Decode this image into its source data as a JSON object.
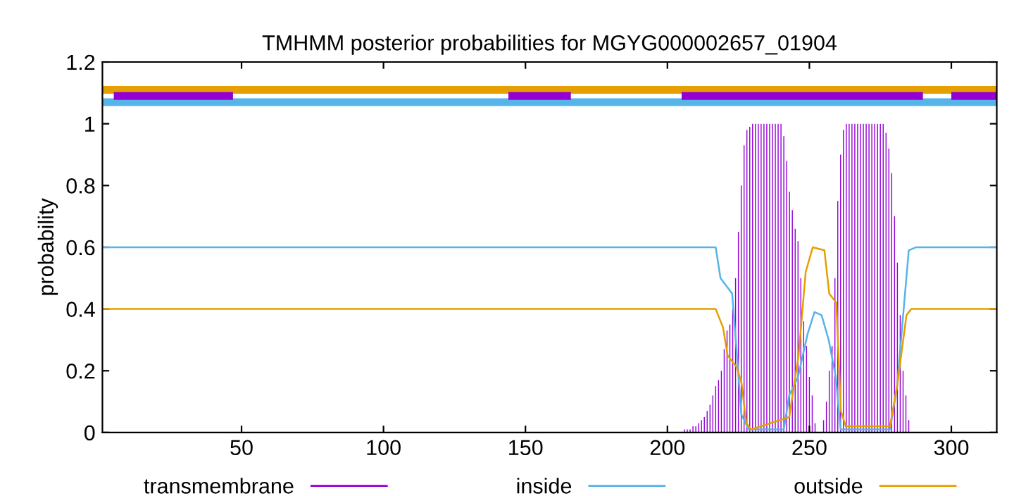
{
  "chart_data": {
    "type": "line",
    "title": "TMHMM posterior probabilities for MGYG000002657_01904",
    "ylabel": "probability",
    "xlim": [
      1,
      316
    ],
    "ylim": [
      0,
      1.2
    ],
    "xticks": [
      50,
      100,
      150,
      200,
      250,
      300
    ],
    "yticks": [
      0,
      0.2,
      0.4,
      0.6,
      0.8,
      1,
      1.2
    ],
    "legend": "bottom",
    "grid": false,
    "series": [
      {
        "name": "transmembrane",
        "type": "bar",
        "color": "#9400d3",
        "x": [
          206,
          207,
          208,
          209,
          210,
          211,
          212,
          213,
          214,
          215,
          216,
          217,
          218,
          219,
          220,
          221,
          222,
          223,
          224,
          225,
          226,
          227,
          228,
          229,
          230,
          231,
          232,
          233,
          234,
          235,
          236,
          237,
          238,
          239,
          240,
          241,
          242,
          243,
          244,
          245,
          246,
          247,
          248,
          249,
          250,
          251,
          252,
          253,
          254,
          255,
          256,
          257,
          258,
          259,
          260,
          261,
          262,
          263,
          264,
          265,
          266,
          267,
          268,
          269,
          270,
          271,
          272,
          273,
          274,
          275,
          276,
          277,
          278,
          279,
          280,
          281,
          282,
          283,
          284,
          285
        ],
        "values": [
          0.01,
          0.01,
          0.01,
          0.02,
          0.02,
          0.03,
          0.04,
          0.05,
          0.07,
          0.09,
          0.12,
          0.15,
          0.17,
          0.2,
          0.27,
          0.33,
          0.35,
          0.4,
          0.5,
          0.65,
          0.8,
          0.93,
          0.98,
          0.99,
          1,
          1,
          1,
          1,
          1,
          1,
          1,
          1,
          1,
          1,
          1,
          0.96,
          0.88,
          0.78,
          0.72,
          0.66,
          0.62,
          0.5,
          0.36,
          0.28,
          0.18,
          0.12,
          0.03,
          null,
          null,
          0.04,
          0.1,
          0.2,
          0.28,
          0.5,
          0.75,
          0.9,
          0.98,
          1,
          1,
          1,
          1,
          1,
          1,
          1,
          1,
          1,
          1,
          1,
          1,
          1,
          1,
          0.97,
          0.92,
          0.84,
          0.7,
          0.55,
          0.38,
          0.2,
          0.12,
          0.04
        ]
      },
      {
        "name": "inside",
        "color": "#56b4e9",
        "x": [
          1,
          217,
          218.7,
          222.8,
          224.5,
          226,
          228.6,
          241,
          242.9,
          246,
          249.4,
          251.8,
          254.3,
          256.8,
          259.3,
          261,
          278.4,
          280.9,
          283.4,
          285,
          287.6,
          316
        ],
        "values": [
          0.6,
          0.6,
          0.5,
          0.45,
          0.25,
          0.06,
          0.01,
          0.01,
          0.12,
          0.18,
          0.32,
          0.39,
          0.38,
          0.3,
          0.18,
          0.01,
          0.01,
          0.15,
          0.42,
          0.59,
          0.6,
          0.6
        ]
      },
      {
        "name": "outside",
        "color": "#e69f00",
        "x": [
          1,
          217,
          219.6,
          221.2,
          224.5,
          226.1,
          227.8,
          229.5,
          242.9,
          246.2,
          248.7,
          251.2,
          255.3,
          257,
          259.5,
          261.1,
          262.8,
          278.4,
          280.9,
          284.2,
          285.9,
          316
        ],
        "values": [
          0.4,
          0.4,
          0.34,
          0.25,
          0.21,
          0.16,
          0.03,
          0.01,
          0.05,
          0.25,
          0.52,
          0.6,
          0.59,
          0.45,
          0.42,
          0.07,
          0.02,
          0.02,
          0.15,
          0.38,
          0.4,
          0.4
        ]
      },
      {
        "color": "#e69f00",
        "x": [
          1,
          316
        ],
        "values": [
          1.11,
          1.11
        ]
      },
      {
        "color": "#56b4e9",
        "x": [
          1,
          316
        ],
        "values": [
          1.07,
          1.07
        ]
      },
      {
        "color": "#9400d3",
        "x": [
          5,
          47,
          95,
          144,
          166,
          185,
          205,
          290,
          295,
          300,
          316
        ],
        "values": [
          1.09,
          1.09,
          null,
          1.09,
          1.09,
          null,
          1.09,
          1.09,
          null,
          1.09,
          1.09
        ]
      }
    ]
  }
}
